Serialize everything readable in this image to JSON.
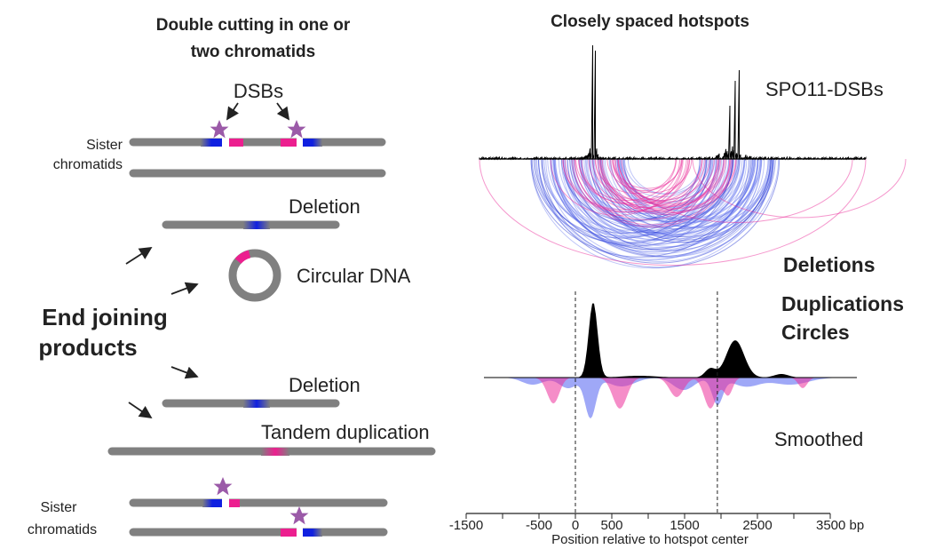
{
  "left": {
    "title": [
      "Double cutting in one or",
      "two chromatids"
    ],
    "dsbs": "DSBs",
    "sister_top": [
      "Sister",
      "chromatids"
    ],
    "deletion_1": "Deletion",
    "circular": "Circular DNA",
    "end_joining": [
      "End joining",
      "products"
    ],
    "deletion_2": "Deletion",
    "tandem": "Tandem duplication",
    "sister_bottom": [
      "Sister",
      "chromatids"
    ]
  },
  "right": {
    "title": "Closely spaced hotspots",
    "spo11": "SPO11-DSBs",
    "smoothed": "Smoothed",
    "legend": [
      {
        "name": "Deletions",
        "color": "#1f2ff0"
      },
      {
        "name": "Duplications",
        "color": "#ec2f9b"
      },
      {
        "name": "Circles",
        "color": "#ec2f9b"
      }
    ],
    "axis": {
      "xlim": [
        -1500,
        3500
      ],
      "xticks": [
        -1500,
        -500,
        0,
        500,
        1500,
        2500,
        {
          "value": 3500,
          "label": "3500 bp"
        }
      ],
      "minor_xticks": [
        -1000,
        1000,
        2000,
        3000
      ],
      "hotspot_lines": [
        0,
        1950
      ],
      "label": "Position relative to hotspot center"
    }
  }
}
